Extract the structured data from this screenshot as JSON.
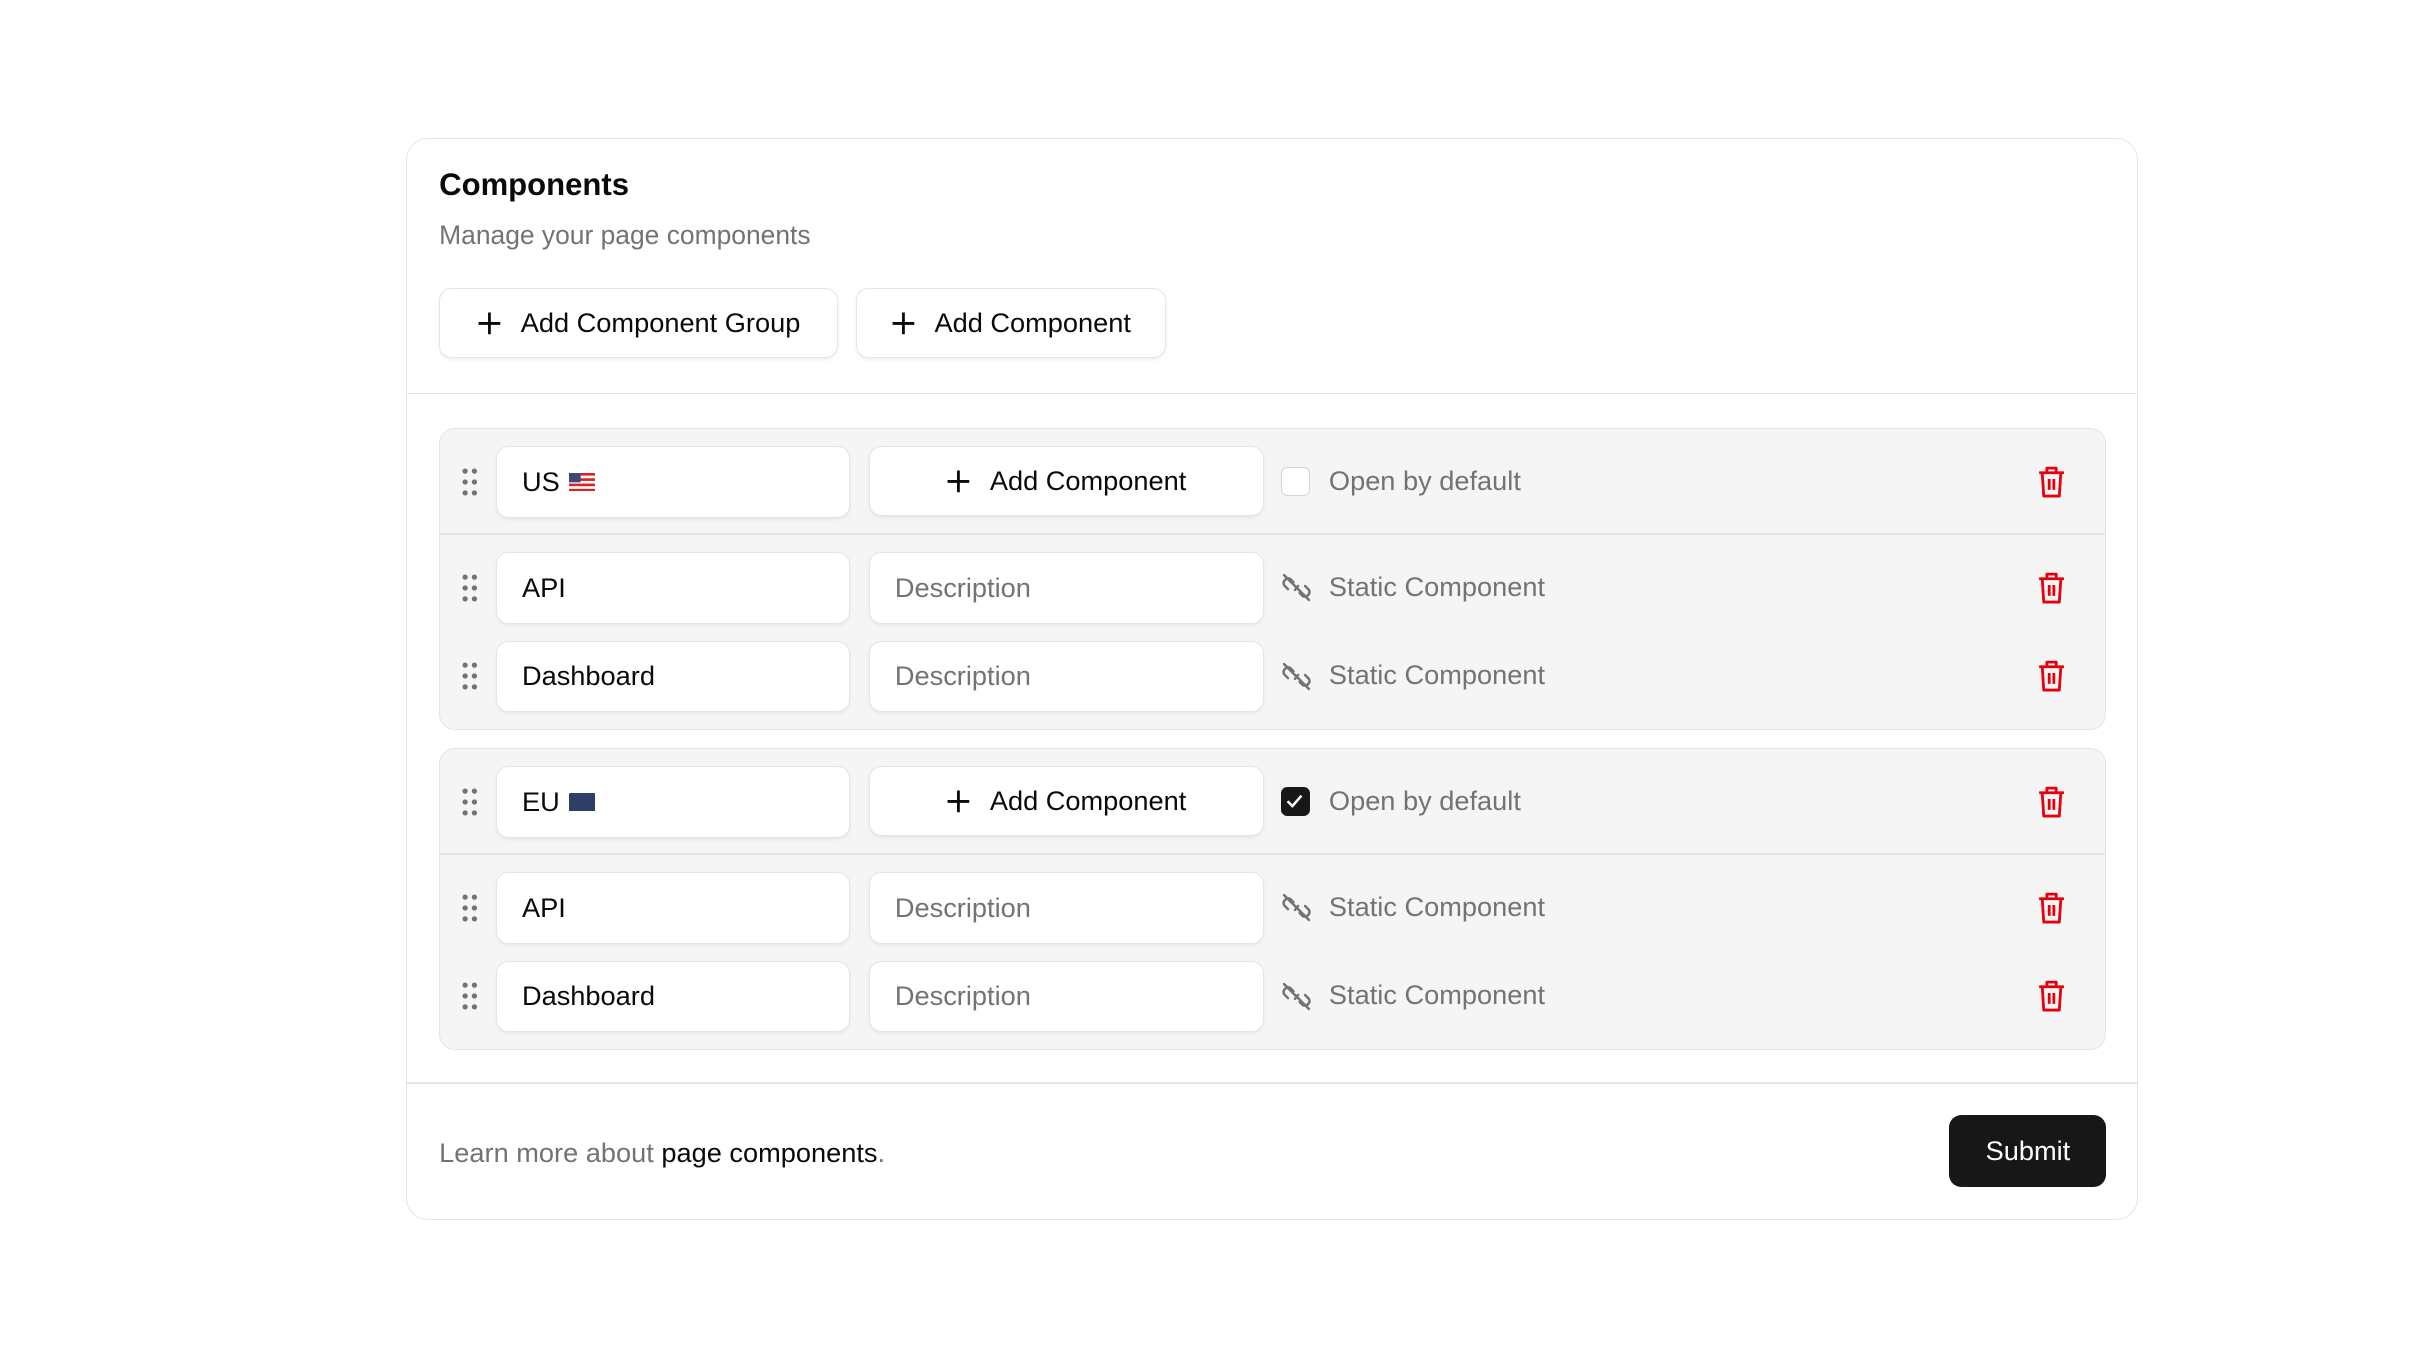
{
  "header": {
    "title": "Components",
    "subtitle": "Manage your page components"
  },
  "toolbar": {
    "add_group_label": "Add Component Group",
    "add_component_label": "Add Component"
  },
  "groups": [
    {
      "name": "US",
      "flag": "🇺🇸",
      "flag_icon": "us-flag-icon",
      "add_component_label": "Add Component",
      "open_by_default": false,
      "open_label": "Open by default",
      "components": [
        {
          "name": "API",
          "description_placeholder": "Description",
          "type_label": "Static Component"
        },
        {
          "name": "Dashboard",
          "description_placeholder": "Description",
          "type_label": "Static Component"
        }
      ]
    },
    {
      "name": "EU",
      "flag": "🇪🇺",
      "flag_icon": "eu-flag-icon",
      "add_component_label": "Add Component",
      "open_by_default": true,
      "open_label": "Open by default",
      "components": [
        {
          "name": "API",
          "description_placeholder": "Description",
          "type_label": "Static Component"
        },
        {
          "name": "Dashboard",
          "description_placeholder": "Description",
          "type_label": "Static Component"
        }
      ]
    }
  ],
  "footer": {
    "learn_prefix": "Learn more about ",
    "learn_link": "page components",
    "learn_suffix": ".",
    "submit_label": "Submit"
  },
  "colors": {
    "primary": "#171717",
    "danger": "#e7000b",
    "muted": "#737373",
    "group_bg": "#f5f5f5",
    "border": "#e5e5e5"
  }
}
